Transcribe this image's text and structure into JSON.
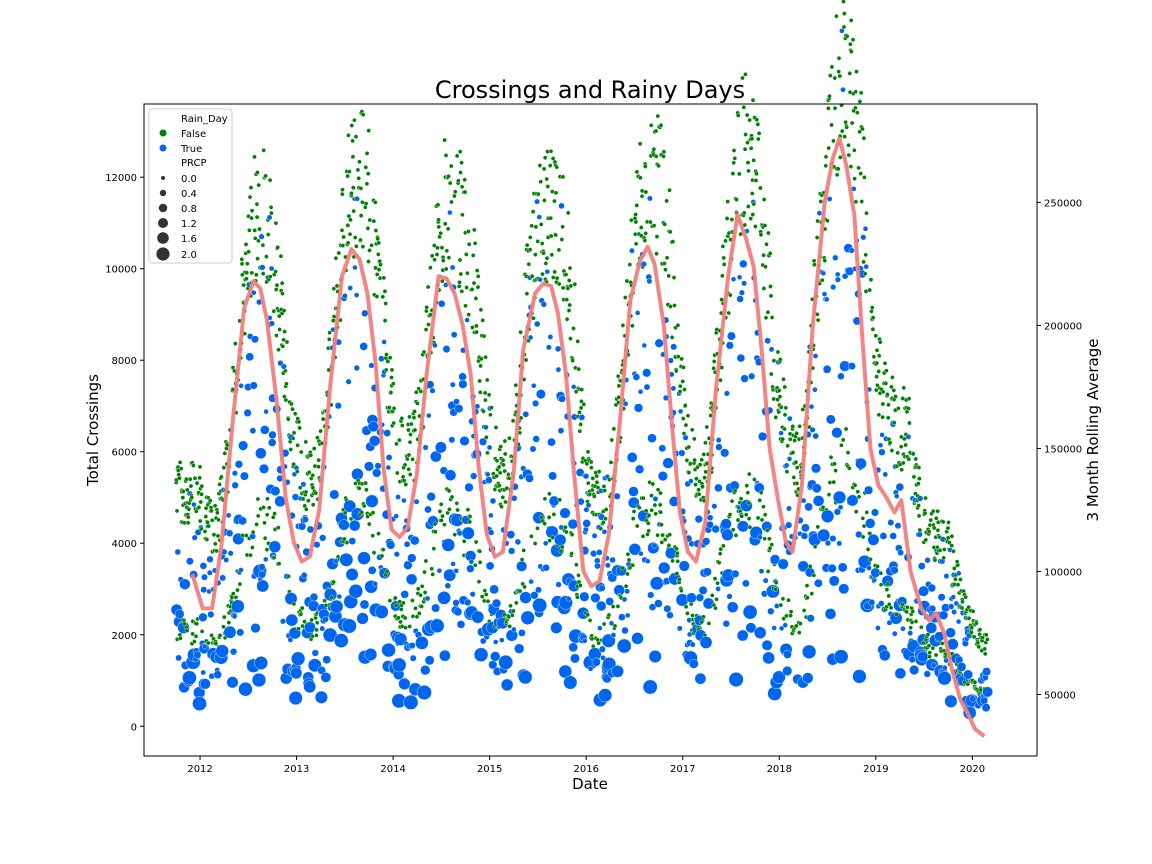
{
  "chart_data": {
    "type": "scatter",
    "title": "Crossings and Rainy Days",
    "xlabel": "Date",
    "ylabel": "Total Crossings",
    "y2label": "3 Month Rolling Average",
    "x_ticks": [
      "2012",
      "2013",
      "2014",
      "2015",
      "2016",
      "2017",
      "2018",
      "2019",
      "2020"
    ],
    "y_ticks": [
      0,
      2000,
      4000,
      6000,
      8000,
      10000,
      12000
    ],
    "y2_ticks": [
      50000,
      100000,
      150000,
      200000,
      250000
    ],
    "xlim": [
      "2011-06-01",
      "2020-09-01"
    ],
    "ylim": [
      -650,
      13600
    ],
    "y2lim": [
      25000,
      290000
    ],
    "grid": false,
    "legend": {
      "placement": "upper-left",
      "hue_title": "Rain_Day",
      "hue_entries": [
        {
          "label": "False",
          "color": "#008000"
        },
        {
          "label": "True",
          "color": "#0066ee"
        }
      ],
      "size_title": "PRCP",
      "size_entries": [
        "0.0",
        "0.4",
        "0.8",
        "1.2",
        "1.6",
        "2.0"
      ]
    },
    "series": [
      {
        "name": "False",
        "kind": "scatter",
        "color": "#008000",
        "note": "daily crossings on non-rainy days, seasonal cycle peaking mid-year"
      },
      {
        "name": "True",
        "kind": "scatter",
        "color": "#0066ee",
        "note": "daily crossings on rainy days, marker size = PRCP"
      }
    ],
    "rolling_average": {
      "axis": "right",
      "color": "#f08080",
      "points": [
        [
          "2011-12-01",
          99000
        ],
        [
          "2012-01-10",
          85000
        ],
        [
          "2012-02-15",
          85000
        ],
        [
          "2012-03-20",
          110000
        ],
        [
          "2012-05-01",
          160000
        ],
        [
          "2012-06-15",
          207000
        ],
        [
          "2012-07-20",
          218000
        ],
        [
          "2012-08-15",
          215000
        ],
        [
          "2012-09-10",
          202000
        ],
        [
          "2012-10-15",
          170000
        ],
        [
          "2012-11-20",
          130000
        ],
        [
          "2012-12-20",
          112000
        ],
        [
          "2013-01-20",
          104000
        ],
        [
          "2013-02-20",
          106000
        ],
        [
          "2013-03-25",
          125000
        ],
        [
          "2013-05-05",
          175000
        ],
        [
          "2013-06-20",
          220000
        ],
        [
          "2013-07-25",
          231000
        ],
        [
          "2013-08-25",
          227000
        ],
        [
          "2013-09-25",
          213000
        ],
        [
          "2013-10-25",
          185000
        ],
        [
          "2013-11-25",
          142000
        ],
        [
          "2013-12-25",
          117000
        ],
        [
          "2014-01-25",
          114000
        ],
        [
          "2014-02-25",
          118000
        ],
        [
          "2014-03-30",
          140000
        ],
        [
          "2014-05-05",
          180000
        ],
        [
          "2014-06-20",
          220000
        ],
        [
          "2014-07-20",
          219000
        ],
        [
          "2014-08-20",
          213000
        ],
        [
          "2014-09-20",
          200000
        ],
        [
          "2014-10-20",
          180000
        ],
        [
          "2014-11-20",
          142000
        ],
        [
          "2014-12-20",
          115000
        ],
        [
          "2015-01-20",
          106000
        ],
        [
          "2015-02-20",
          108000
        ],
        [
          "2015-03-30",
          140000
        ],
        [
          "2015-05-05",
          190000
        ],
        [
          "2015-06-20",
          213000
        ],
        [
          "2015-07-20",
          217000
        ],
        [
          "2015-08-20",
          216000
        ],
        [
          "2015-09-15",
          205000
        ],
        [
          "2015-10-15",
          180000
        ],
        [
          "2015-11-15",
          140000
        ],
        [
          "2015-12-20",
          100000
        ],
        [
          "2016-01-20",
          94000
        ],
        [
          "2016-02-20",
          96000
        ],
        [
          "2016-03-25",
          115000
        ],
        [
          "2016-05-05",
          160000
        ],
        [
          "2016-06-15",
          210000
        ],
        [
          "2016-07-20",
          226000
        ],
        [
          "2016-08-20",
          232000
        ],
        [
          "2016-09-15",
          225000
        ],
        [
          "2016-10-20",
          200000
        ],
        [
          "2016-11-20",
          160000
        ],
        [
          "2016-12-20",
          124000
        ],
        [
          "2017-01-20",
          108000
        ],
        [
          "2017-02-20",
          104000
        ],
        [
          "2017-03-25",
          120000
        ],
        [
          "2017-05-05",
          175000
        ],
        [
          "2017-06-20",
          220000
        ],
        [
          "2017-07-25",
          245000
        ],
        [
          "2017-08-25",
          236000
        ],
        [
          "2017-09-25",
          224000
        ],
        [
          "2017-10-25",
          190000
        ],
        [
          "2017-11-25",
          150000
        ],
        [
          "2017-12-25",
          130000
        ],
        [
          "2018-01-25",
          112000
        ],
        [
          "2018-02-20",
          108000
        ],
        [
          "2018-03-25",
          135000
        ],
        [
          "2018-05-05",
          200000
        ],
        [
          "2018-06-20",
          250000
        ],
        [
          "2018-07-20",
          268000
        ],
        [
          "2018-08-15",
          276000
        ],
        [
          "2018-09-10",
          265000
        ],
        [
          "2018-10-10",
          245000
        ],
        [
          "2018-11-10",
          195000
        ],
        [
          "2018-12-10",
          150000
        ],
        [
          "2019-01-10",
          135000
        ],
        [
          "2019-02-10",
          130000
        ],
        [
          "2019-03-10",
          124000
        ],
        [
          "2019-04-05",
          129000
        ],
        [
          "2019-05-10",
          100000
        ],
        [
          "2019-06-20",
          85000
        ],
        [
          "2019-07-20",
          80000
        ],
        [
          "2019-08-15",
          83000
        ],
        [
          "2019-09-15",
          75000
        ],
        [
          "2019-10-15",
          60000
        ],
        [
          "2019-11-15",
          48000
        ],
        [
          "2019-12-10",
          43000
        ],
        [
          "2020-01-10",
          36000
        ],
        [
          "2020-02-15",
          33000
        ]
      ]
    }
  }
}
